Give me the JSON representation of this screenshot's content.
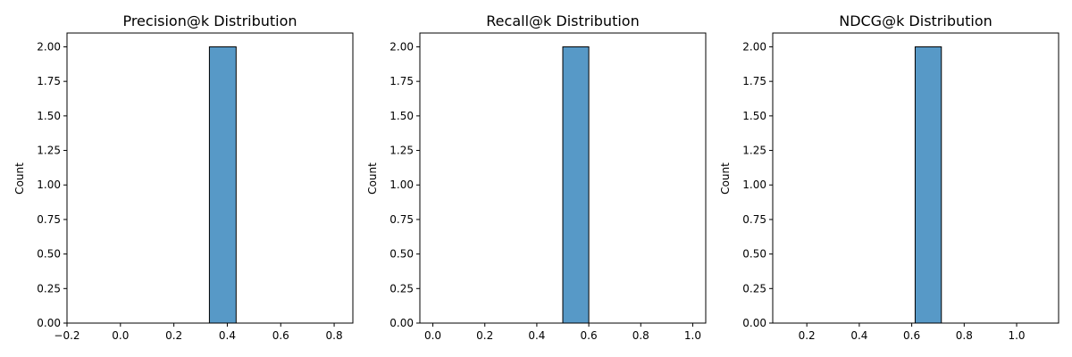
{
  "chart_data": [
    {
      "type": "bar",
      "title": "Precision@k Distribution",
      "xlabel": "",
      "ylabel": "Count",
      "xlim": [
        -0.2,
        0.87
      ],
      "ylim": [
        0,
        2.1
      ],
      "x_ticks": [
        "−0.2",
        "0.0",
        "0.2",
        "0.4",
        "0.6",
        "0.8"
      ],
      "x_tick_values": [
        -0.2,
        0.0,
        0.2,
        0.4,
        0.6,
        0.8
      ],
      "y_ticks": [
        "0.00",
        "0.25",
        "0.50",
        "0.75",
        "1.00",
        "1.25",
        "1.50",
        "1.75",
        "2.00"
      ],
      "y_tick_values": [
        0,
        0.25,
        0.5,
        0.75,
        1.0,
        1.25,
        1.5,
        1.75,
        2.0
      ],
      "bins": [
        {
          "x0": -0.167,
          "x1": -0.067,
          "count": 0
        },
        {
          "x0": -0.067,
          "x1": 0.033,
          "count": 0
        },
        {
          "x0": 0.033,
          "x1": 0.133,
          "count": 0
        },
        {
          "x0": 0.133,
          "x1": 0.233,
          "count": 0
        },
        {
          "x0": 0.233,
          "x1": 0.333,
          "count": 0
        },
        {
          "x0": 0.333,
          "x1": 0.433,
          "count": 2
        },
        {
          "x0": 0.433,
          "x1": 0.533,
          "count": 0
        },
        {
          "x0": 0.533,
          "x1": 0.633,
          "count": 0
        },
        {
          "x0": 0.633,
          "x1": 0.733,
          "count": 0
        },
        {
          "x0": 0.733,
          "x1": 0.833,
          "count": 0
        }
      ],
      "bar_color": "#5799c7",
      "edge_color": "#000000",
      "grid": false
    },
    {
      "type": "bar",
      "title": "Recall@k Distribution",
      "xlabel": "",
      "ylabel": "Count",
      "xlim": [
        -0.05,
        1.05
      ],
      "ylim": [
        0,
        2.1
      ],
      "x_ticks": [
        "0.0",
        "0.2",
        "0.4",
        "0.6",
        "0.8",
        "1.0"
      ],
      "x_tick_values": [
        0.0,
        0.2,
        0.4,
        0.6,
        0.8,
        1.0
      ],
      "y_ticks": [
        "0.00",
        "0.25",
        "0.50",
        "0.75",
        "1.00",
        "1.25",
        "1.50",
        "1.75",
        "2.00"
      ],
      "y_tick_values": [
        0,
        0.25,
        0.5,
        0.75,
        1.0,
        1.25,
        1.5,
        1.75,
        2.0
      ],
      "bins": [
        {
          "x0": 0.0,
          "x1": 0.1,
          "count": 0
        },
        {
          "x0": 0.1,
          "x1": 0.2,
          "count": 0
        },
        {
          "x0": 0.2,
          "x1": 0.3,
          "count": 0
        },
        {
          "x0": 0.3,
          "x1": 0.4,
          "count": 0
        },
        {
          "x0": 0.4,
          "x1": 0.5,
          "count": 0
        },
        {
          "x0": 0.5,
          "x1": 0.6,
          "count": 2
        },
        {
          "x0": 0.6,
          "x1": 0.7,
          "count": 0
        },
        {
          "x0": 0.7,
          "x1": 0.8,
          "count": 0
        },
        {
          "x0": 0.8,
          "x1": 0.9,
          "count": 0
        },
        {
          "x0": 0.9,
          "x1": 1.0,
          "count": 0
        }
      ],
      "bar_color": "#5799c7",
      "edge_color": "#000000",
      "grid": false
    },
    {
      "type": "bar",
      "title": "NDCG@k Distribution",
      "xlabel": "",
      "ylabel": "Count",
      "xlim": [
        0.07,
        1.16
      ],
      "ylim": [
        0,
        2.1
      ],
      "x_ticks": [
        "0.2",
        "0.4",
        "0.6",
        "0.8",
        "1.0"
      ],
      "x_tick_values": [
        0.2,
        0.4,
        0.6,
        0.8,
        1.0
      ],
      "y_ticks": [
        "0.00",
        "0.25",
        "0.50",
        "0.75",
        "1.00",
        "1.25",
        "1.50",
        "1.75",
        "2.00"
      ],
      "y_tick_values": [
        0,
        0.25,
        0.5,
        0.75,
        1.0,
        1.25,
        1.5,
        1.75,
        2.0
      ],
      "bins": [
        {
          "x0": 0.113,
          "x1": 0.213,
          "count": 0
        },
        {
          "x0": 0.213,
          "x1": 0.313,
          "count": 0
        },
        {
          "x0": 0.313,
          "x1": 0.413,
          "count": 0
        },
        {
          "x0": 0.413,
          "x1": 0.513,
          "count": 0
        },
        {
          "x0": 0.513,
          "x1": 0.613,
          "count": 0
        },
        {
          "x0": 0.613,
          "x1": 0.713,
          "count": 2
        },
        {
          "x0": 0.713,
          "x1": 0.813,
          "count": 0
        },
        {
          "x0": 0.813,
          "x1": 0.913,
          "count": 0
        },
        {
          "x0": 0.913,
          "x1": 1.013,
          "count": 0
        },
        {
          "x0": 1.013,
          "x1": 1.113,
          "count": 0
        }
      ],
      "bar_color": "#5799c7",
      "edge_color": "#000000",
      "grid": false
    }
  ]
}
